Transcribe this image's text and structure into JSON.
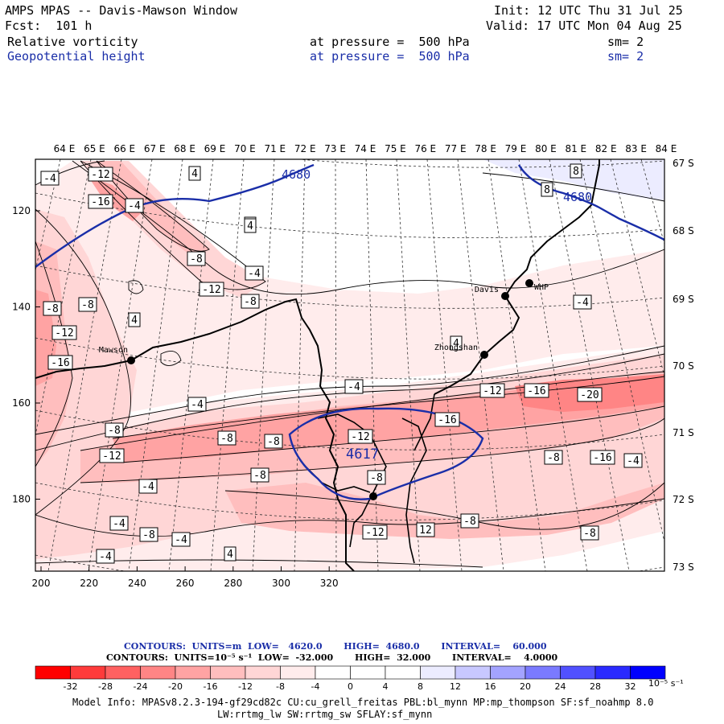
{
  "header": {
    "title": "AMPS MPAS -- Davis-Mawson Window",
    "forecast": "Fcst:  101 h",
    "init": "Init: 12 UTC Thu 31 Jul 25",
    "valid": "Valid: 17 UTC Mon 04 Aug 25",
    "field1": {
      "name": "Relative vorticity",
      "pressure": "at pressure =  500 hPa",
      "sm": "sm= 2"
    },
    "field2": {
      "name": "Geopotential height",
      "pressure": "at pressure =  500 hPa",
      "sm": "sm= 2"
    }
  },
  "map": {
    "top_axis_labels": [
      "64 E",
      "65 E",
      "66 E",
      "67 E",
      "68 E",
      "69 E",
      "70 E",
      "71 E",
      "72 E",
      "73 E",
      "74 E",
      "75 E",
      "76 E",
      "77 E",
      "78 E",
      "79 E",
      "80 E",
      "81 E",
      "82 E",
      "83 E",
      "84 E"
    ],
    "right_axis_labels": [
      "67 S",
      "68 S",
      "69 S",
      "70 S",
      "71 S",
      "72 S",
      "73 S"
    ],
    "bottom_axis_labels": [
      "200",
      "220",
      "240",
      "260",
      "280",
      "300",
      "320"
    ],
    "left_axis_labels": [
      "120",
      "140",
      "160",
      "180"
    ],
    "stations": [
      {
        "name": "Mawson"
      },
      {
        "name": "Davis"
      },
      {
        "name": "WHP"
      },
      {
        "name": "Zhongshan"
      },
      {
        "name": ""
      }
    ],
    "height_labels": [
      "4680",
      "4680",
      "4617"
    ],
    "vorticity_labels": [
      "-4",
      "-12",
      "4",
      "-16",
      "-4",
      "4",
      "-8",
      "-4",
      "-12",
      "-8",
      "-8",
      "-8",
      "4",
      "-12",
      "-16",
      "-4",
      "4",
      "-4",
      "-12",
      "-16",
      "-20",
      "-4",
      "-8",
      "-16",
      "-8",
      "-12",
      "-12",
      "-16",
      "-8",
      "-4",
      "-8",
      "-8",
      "-12",
      "-4",
      "-8",
      "-4",
      "-8",
      "-4",
      "4",
      "4",
      "-12",
      "12",
      "-8",
      "-8",
      "-4",
      "8",
      "8"
    ]
  },
  "contours": {
    "line1": "CONTOURS:  UNITS=m  LOW=   4620.0       HIGH=  4680.0       INTERVAL=    60.000",
    "line2": "CONTOURS:  UNITS=10⁻⁵ s⁻¹  LOW=  -32.000       HIGH=  32.000       INTERVAL=    4.0000"
  },
  "colorbar": {
    "labels": [
      "-32",
      "-28",
      "-24",
      "-20",
      "-16",
      "-12",
      "-8",
      "-4",
      "0",
      "4",
      "8",
      "12",
      "16",
      "20",
      "24",
      "28",
      "32"
    ],
    "units": "10⁻⁵ s⁻¹",
    "colors": [
      "#ff0000",
      "#ff3b3b",
      "#ff6161",
      "#ff8585",
      "#ffa3a3",
      "#ffbebe",
      "#ffd6d6",
      "#ffecec",
      "#ffffff",
      "#ffffff",
      "#ececff",
      "#c8c8ff",
      "#a3a3ff",
      "#7a7aff",
      "#5151ff",
      "#2a2aff",
      "#0000ff"
    ]
  },
  "footer": {
    "line1": "Model Info: MPASv8.2.3-194-gf29cd82c CU:cu_grell_freitas PBL:bl_mynn MP:mp_thompson SF:sf_noahmp 8.0",
    "line2": "LW:rrtmg_lw SW:rrtmg_sw SFLAY:sf_mynn"
  }
}
